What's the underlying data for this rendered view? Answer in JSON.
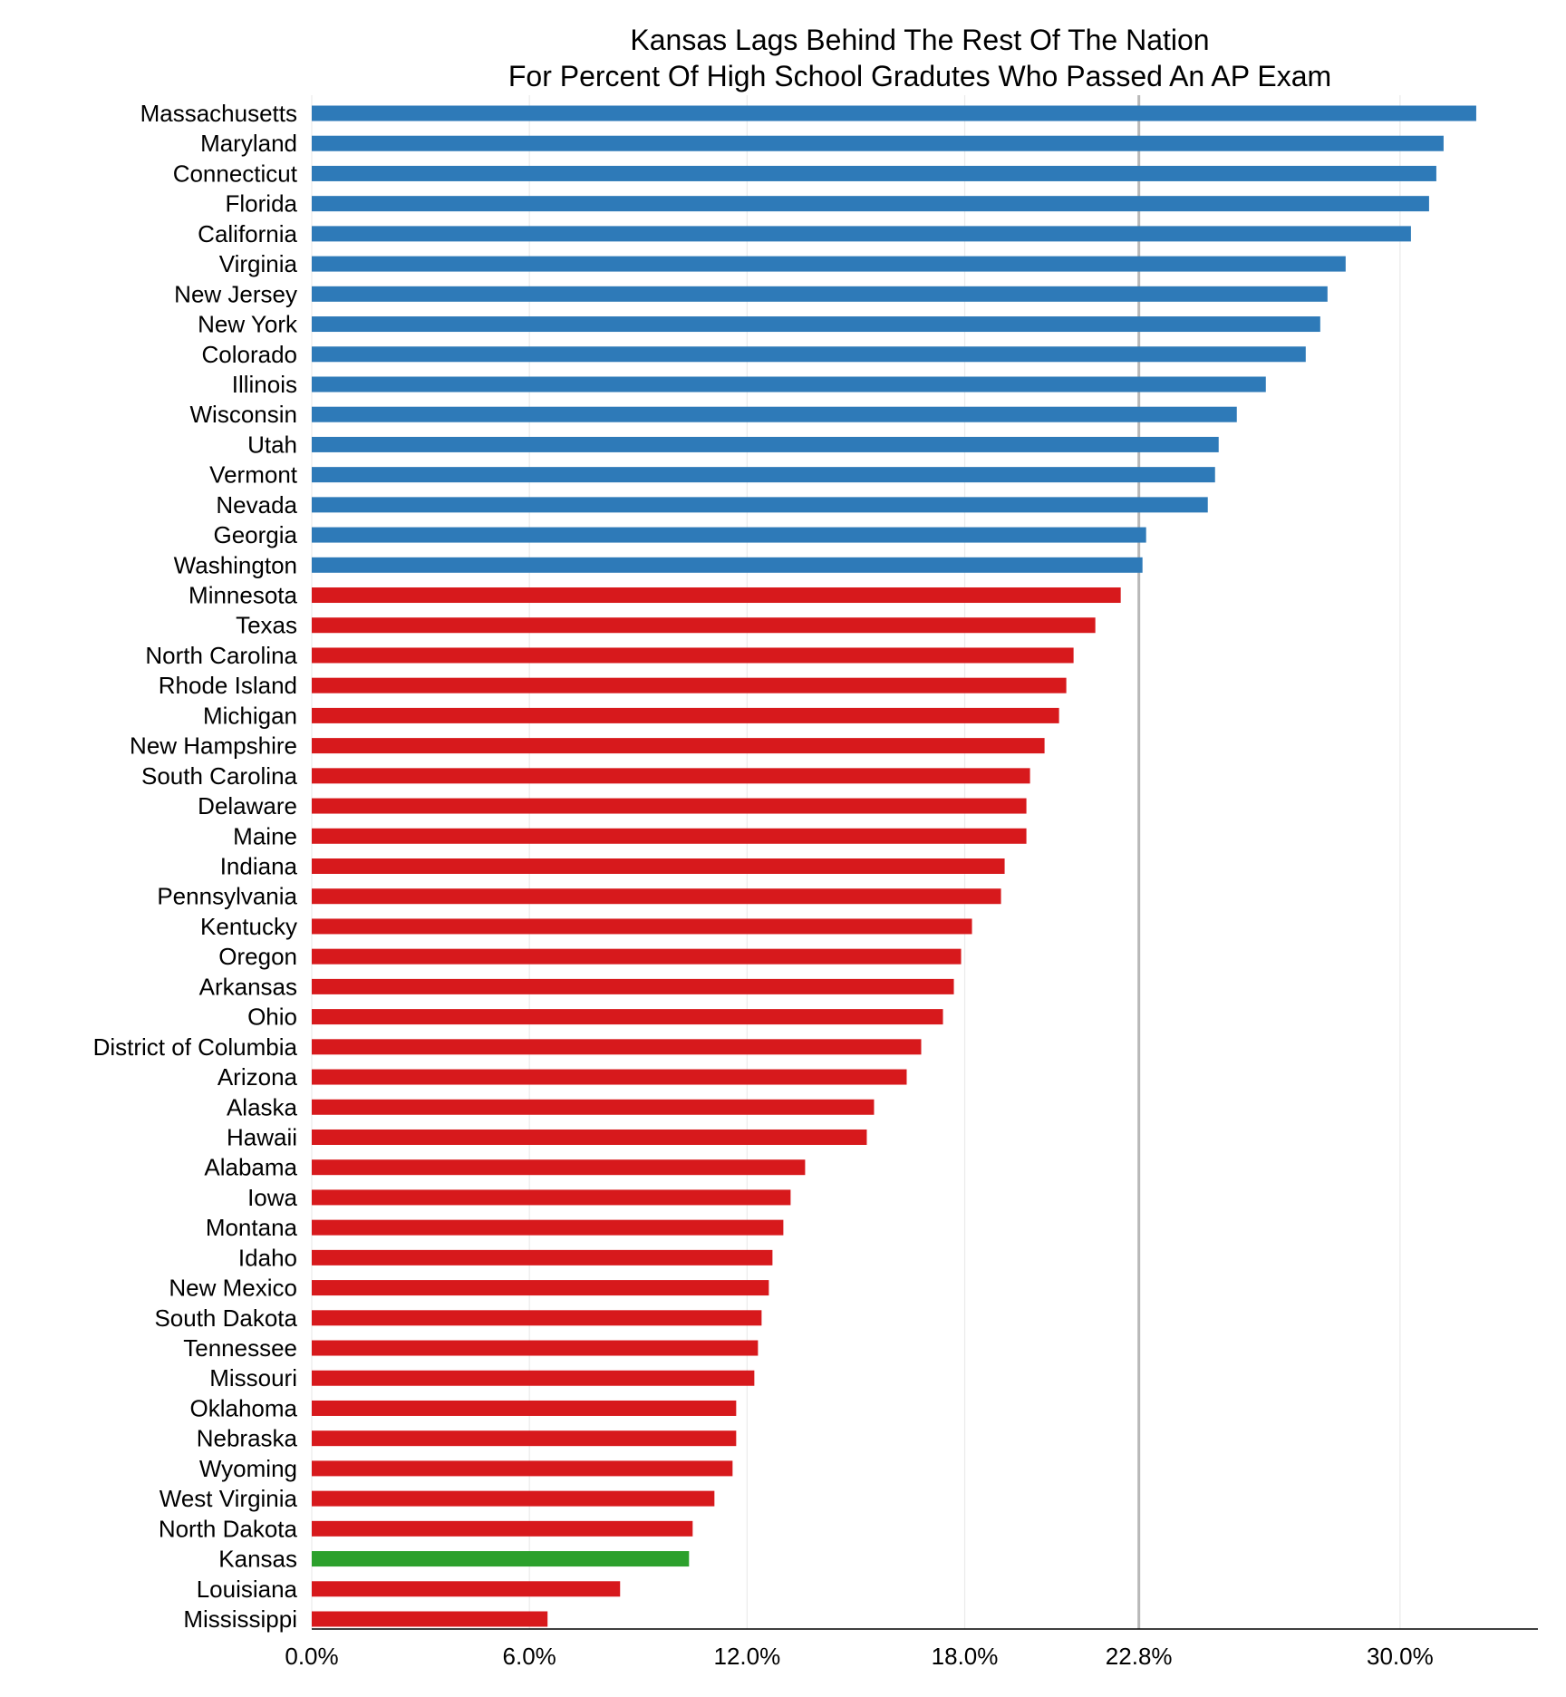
{
  "chart_data": {
    "type": "bar",
    "orientation": "horizontal",
    "title": "Kansas Lags Behind The Rest Of The Nation",
    "subtitle": "For Percent Of High School Gradutes Who Passed An AP Exam",
    "xlabel": "",
    "ylabel": "",
    "xlim": [
      0,
      33.8
    ],
    "xticks": [
      {
        "value": 0,
        "label": "0.0%"
      },
      {
        "value": 6,
        "label": "6.0%"
      },
      {
        "value": 12,
        "label": "12.0%"
      },
      {
        "value": 18,
        "label": "18.0%"
      },
      {
        "value": 22.8,
        "label": "22.8%"
      },
      {
        "value": 30,
        "label": "30.0%"
      }
    ],
    "reference_line": 22.8,
    "grid": "vertical, light",
    "colors": {
      "above_reference": "#2e7ab8",
      "below_reference": "#d7191c",
      "highlight": "#2ca02c",
      "reference_line": "#b8b8b8",
      "grid": "#ebebeb"
    },
    "highlight": "Kansas",
    "categories": [
      "Massachusetts",
      "Maryland",
      "Connecticut",
      "Florida",
      "California",
      "Virginia",
      "New Jersey",
      "New York",
      "Colorado",
      "Illinois",
      "Wisconsin",
      "Utah",
      "Vermont",
      "Nevada",
      "Georgia",
      "Washington",
      "Minnesota",
      "Texas",
      "North Carolina",
      "Rhode Island",
      "Michigan",
      "New Hampshire",
      "South Carolina",
      "Delaware",
      "Maine",
      "Indiana",
      "Pennsylvania",
      "Kentucky",
      "Oregon",
      "Arkansas",
      "Ohio",
      "District of Columbia",
      "Arizona",
      "Alaska",
      "Hawaii",
      "Alabama",
      "Iowa",
      "Montana",
      "Idaho",
      "New Mexico",
      "South Dakota",
      "Tennessee",
      "Missouri",
      "Oklahoma",
      "Nebraska",
      "Wyoming",
      "West Virginia",
      "North Dakota",
      "Kansas",
      "Louisiana",
      "Mississippi"
    ],
    "values": [
      32.1,
      31.2,
      31.0,
      30.8,
      30.3,
      28.5,
      28.0,
      27.8,
      27.4,
      26.3,
      25.5,
      25.0,
      24.9,
      24.7,
      23.0,
      22.9,
      22.3,
      21.6,
      21.0,
      20.8,
      20.6,
      20.2,
      19.8,
      19.7,
      19.7,
      19.1,
      19.0,
      18.2,
      17.9,
      17.7,
      17.4,
      16.8,
      16.4,
      15.5,
      15.3,
      13.6,
      13.2,
      13.0,
      12.7,
      12.6,
      12.4,
      12.3,
      12.2,
      11.7,
      11.7,
      11.6,
      11.1,
      10.5,
      10.4,
      8.5,
      6.5
    ]
  }
}
